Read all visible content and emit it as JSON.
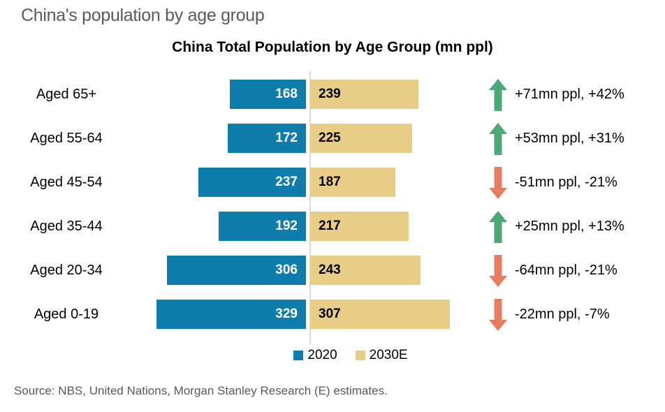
{
  "page": {
    "heading": "China's population by age group",
    "source": "Source: NBS, United Nations, Morgan Stanley Research (E) estimates."
  },
  "chart_data": {
    "type": "bar",
    "orientation": "horizontal-diverging",
    "title": "China Total Population by Age Group (mn ppl)",
    "unit": "mn ppl",
    "value_axis": "hidden",
    "legend_position": "bottom",
    "categories": [
      "Aged 65+",
      "Aged 55-64",
      "Aged 45-54",
      "Aged 35-44",
      "Aged 20-34",
      "Aged 0-19"
    ],
    "series": [
      {
        "name": "2020",
        "color": "#0f7dac",
        "values": [
          168,
          172,
          237,
          192,
          306,
          329
        ]
      },
      {
        "name": "2030E",
        "color": "#e8cd86",
        "values": [
          239,
          225,
          187,
          217,
          243,
          307
        ]
      }
    ],
    "annotations": [
      {
        "direction": "up",
        "text": "+71mn ppl, +42%"
      },
      {
        "direction": "up",
        "text": "+53mn ppl, +31%"
      },
      {
        "direction": "down",
        "text": "-51mn ppl, -21%"
      },
      {
        "direction": "up",
        "text": "+25mn ppl, +13%"
      },
      {
        "direction": "down",
        "text": "-64mn ppl, -21%"
      },
      {
        "direction": "down",
        "text": "-22mn ppl, -7%"
      }
    ],
    "colors": {
      "bar_2020": "#0f7dac",
      "bar_2030": "#e8cd86",
      "arrow_up": "#4ba877",
      "arrow_down": "#e87c5f",
      "axis_line": "#d9d9d9",
      "heading_text": "#595959"
    },
    "pixels_per_unit": 0.65
  }
}
